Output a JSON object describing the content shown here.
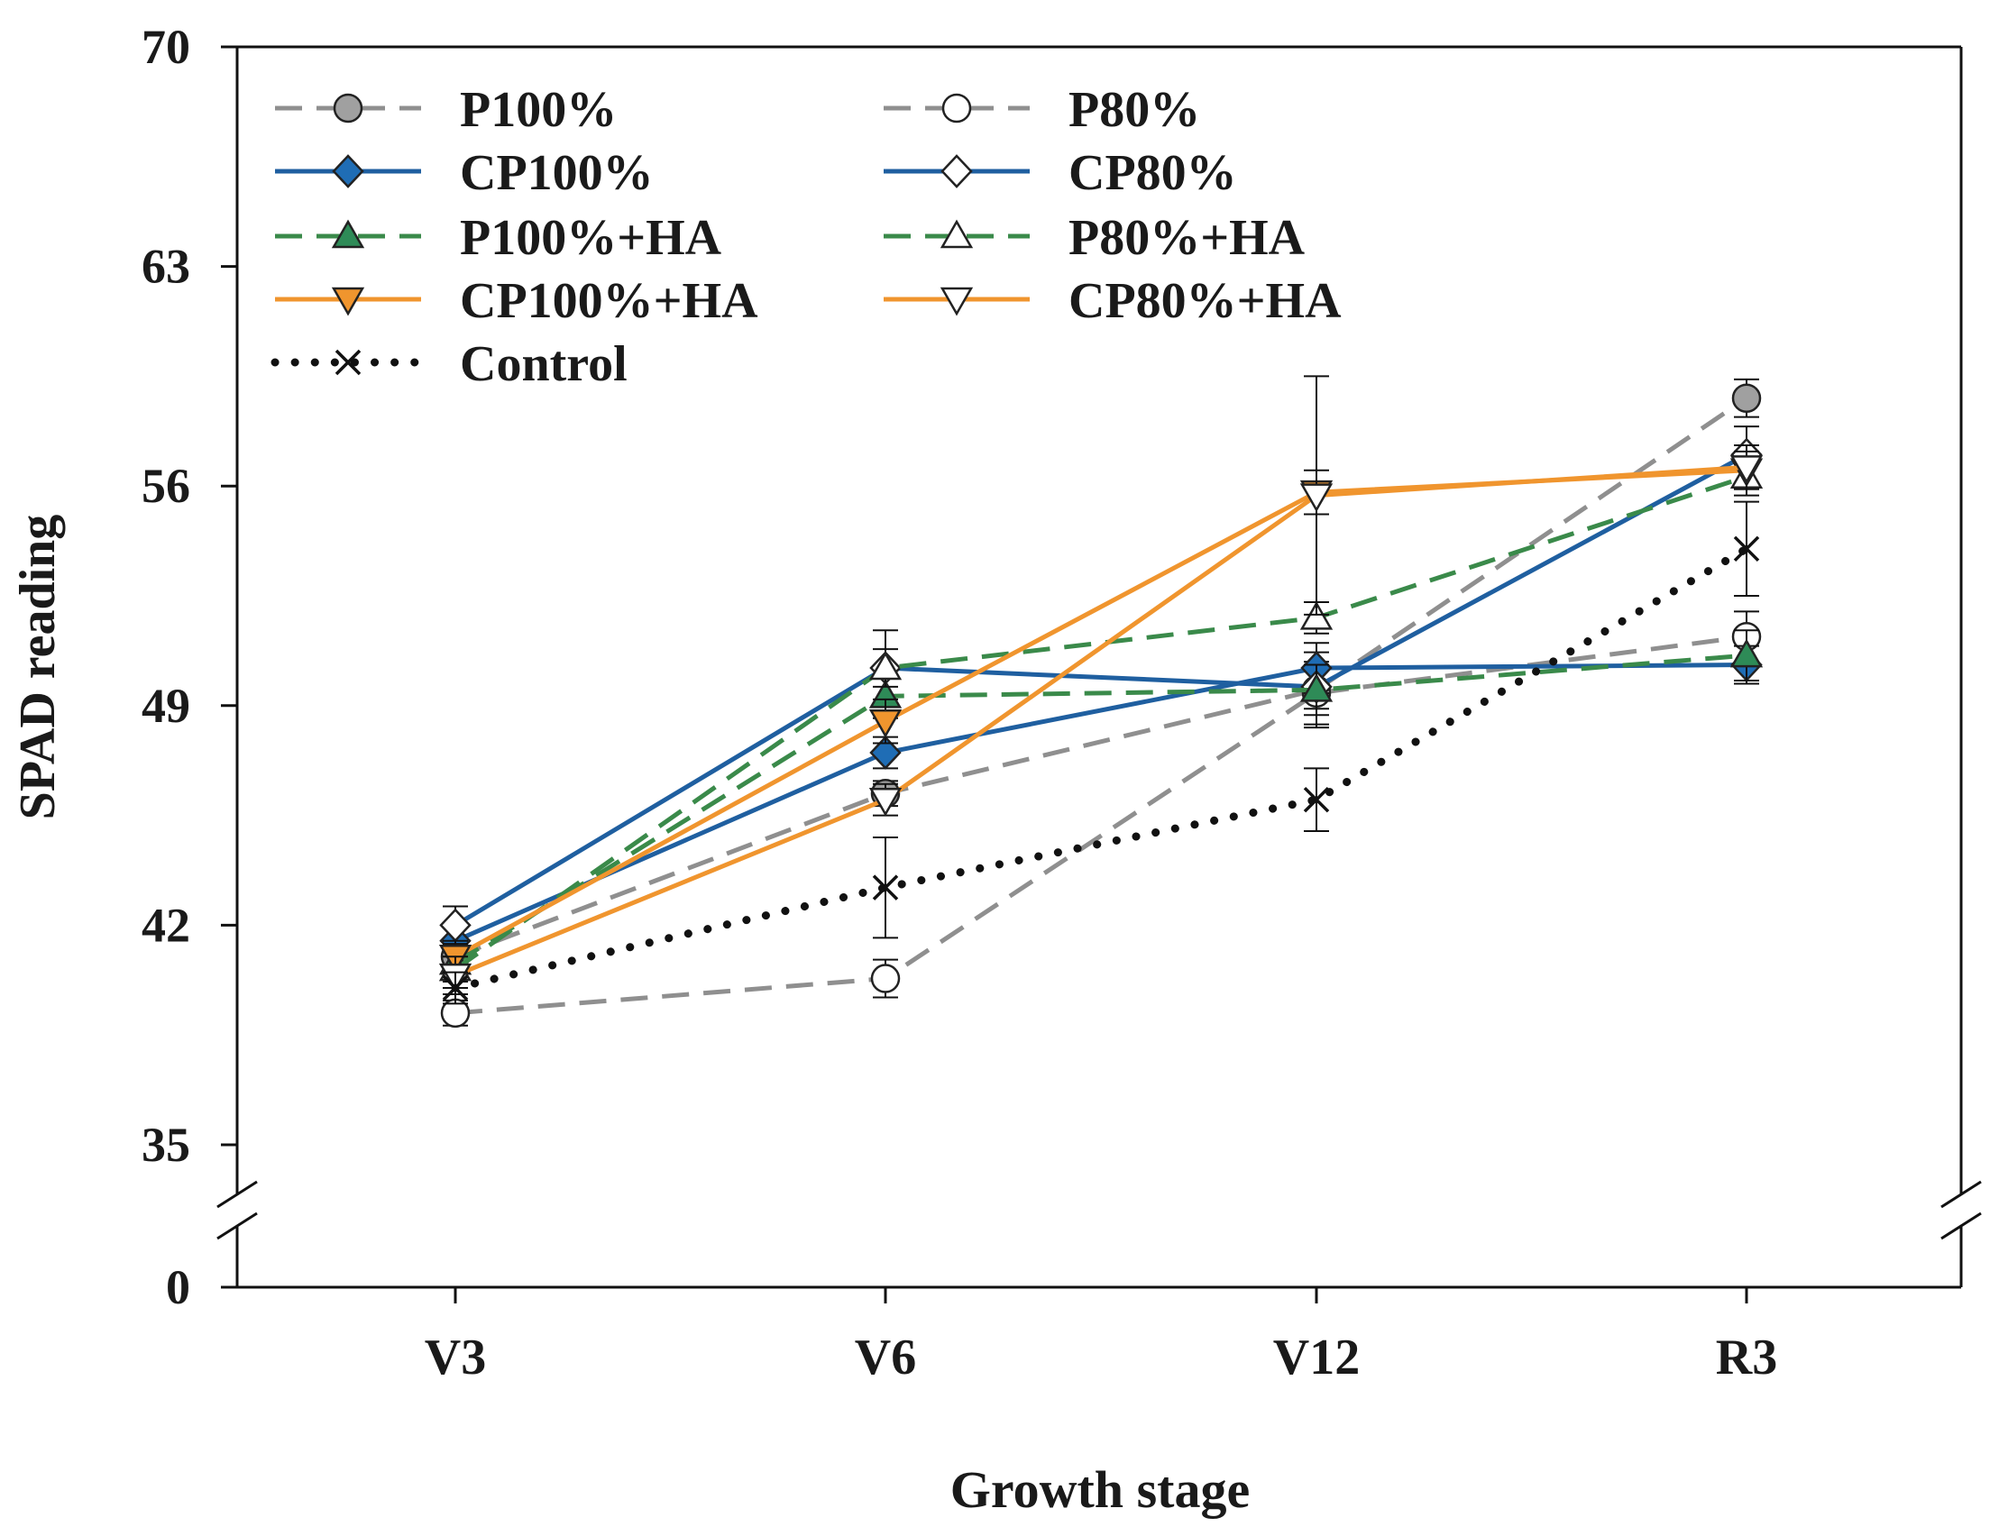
{
  "chart_data": {
    "type": "line",
    "title": "",
    "xlabel": "Growth stage",
    "ylabel": "SPAD reading",
    "categories": [
      "V3",
      "V6",
      "V12",
      "R3"
    ],
    "y_ticks": [
      70,
      63,
      56,
      49,
      42,
      35,
      0
    ],
    "y_tick_labels": [
      "70",
      "63",
      "56",
      "49",
      "42",
      "35",
      "0"
    ],
    "ylim_upper": [
      35,
      70
    ],
    "ylim_lower": [
      0,
      0
    ],
    "axis_break": true,
    "legend_position": "top-left",
    "series": [
      {
        "name": "P100%",
        "color": "#8f8f8f",
        "dash": "dashed",
        "marker": "circle",
        "marker_fill": "#a0a0a0",
        "values": [
          41.0,
          46.2,
          49.5,
          58.8
        ],
        "errors": [
          0.5,
          0.4,
          1.2,
          0.6
        ]
      },
      {
        "name": "P80%",
        "color": "#8f8f8f",
        "dash": "dashed",
        "marker": "circle",
        "marker_fill": "#ffffff",
        "values": [
          39.2,
          40.3,
          49.4,
          51.2
        ],
        "errors": [
          0.4,
          0.6,
          1.0,
          0.8
        ]
      },
      {
        "name": "CP100%",
        "color": "#1f5fa0",
        "dash": "solid",
        "marker": "diamond",
        "marker_fill": "#1f6db5",
        "values": [
          41.5,
          47.5,
          50.2,
          50.3
        ],
        "errors": [
          0.5,
          0.5,
          0.8,
          0.6
        ]
      },
      {
        "name": "CP80%",
        "color": "#1f5fa0",
        "dash": "solid",
        "marker": "diamond",
        "marker_fill": "#ffffff",
        "values": [
          42.0,
          50.2,
          49.6,
          57.0
        ],
        "errors": [
          0.6,
          1.2,
          0.7,
          0.9
        ]
      },
      {
        "name": "P100%+HA",
        "color": "#3a8a4a",
        "dash": "dashed",
        "marker": "triangle-up",
        "marker_fill": "#2e8b57",
        "values": [
          40.8,
          49.3,
          49.5,
          50.6
        ],
        "errors": [
          0.6,
          0.7,
          0.8,
          0.8
        ]
      },
      {
        "name": "P80%+HA",
        "color": "#3a8a4a",
        "dash": "dashed",
        "marker": "triangle-up",
        "marker_fill": "#ffffff",
        "values": [
          40.6,
          50.2,
          51.8,
          56.3
        ],
        "errors": [
          0.6,
          0.6,
          0.5,
          0.6
        ]
      },
      {
        "name": "CP100%+HA",
        "color": "#f0952e",
        "dash": "solid",
        "marker": "triangle-down",
        "marker_fill": "#f0952e",
        "values": [
          41.0,
          48.5,
          55.8,
          56.5
        ],
        "errors": [
          0.5,
          0.7,
          0.7,
          0.6
        ]
      },
      {
        "name": "CP80%+HA",
        "color": "#f0952e",
        "dash": "solid",
        "marker": "triangle-down",
        "marker_fill": "#ffffff",
        "values": [
          40.4,
          46.0,
          55.7,
          56.6
        ],
        "errors": [
          0.6,
          0.5,
          3.8,
          0.7
        ]
      },
      {
        "name": "Control",
        "color": "#111111",
        "dash": "dotted",
        "marker": "x",
        "marker_fill": "none",
        "values": [
          40.0,
          43.2,
          46.0,
          54.0
        ],
        "errors": [
          0.5,
          1.6,
          1.0,
          1.5
        ]
      }
    ]
  }
}
